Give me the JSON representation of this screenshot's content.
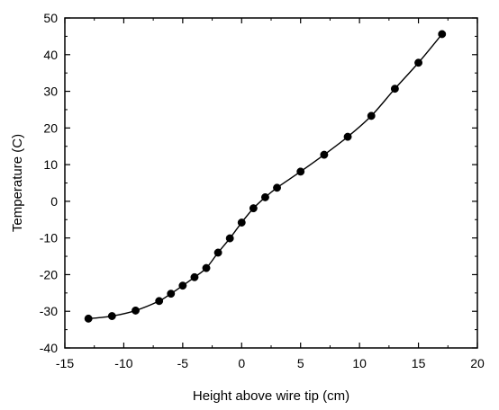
{
  "chart_data": {
    "type": "line",
    "title": "",
    "xlabel": "Height above wire tip  (cm)",
    "ylabel": "Temperature (C)",
    "xlim": [
      -15,
      20
    ],
    "ylim": [
      -40,
      50
    ],
    "x_ticks": [
      -15,
      -10,
      -5,
      0,
      5,
      10,
      15,
      20
    ],
    "y_ticks": [
      -40,
      -30,
      -20,
      -10,
      0,
      10,
      20,
      30,
      40,
      50
    ],
    "x_tick_labels": [
      "-15",
      "-10",
      "-5",
      "0",
      "5",
      "10",
      "15",
      "20"
    ],
    "y_tick_labels": [
      "-40",
      "-30",
      "-20",
      "-10",
      "0",
      "10",
      "20",
      "30",
      "40",
      "50"
    ],
    "grid": false,
    "series": [
      {
        "color": "#000000",
        "marker": "circle",
        "points": [
          {
            "x": -13,
            "y": -32.0
          },
          {
            "x": -11,
            "y": -31.3
          },
          {
            "x": -9,
            "y": -29.8
          },
          {
            "x": -7,
            "y": -27.2
          },
          {
            "x": -6,
            "y": -25.2
          },
          {
            "x": -5,
            "y": -23.0
          },
          {
            "x": -4,
            "y": -20.7
          },
          {
            "x": -3,
            "y": -18.2
          },
          {
            "x": -2,
            "y": -14.0
          },
          {
            "x": -1,
            "y": -10.1
          },
          {
            "x": 0,
            "y": -5.8
          },
          {
            "x": 1,
            "y": -1.9
          },
          {
            "x": 2,
            "y": 1.1
          },
          {
            "x": 3,
            "y": 3.7
          },
          {
            "x": 5,
            "y": 8.1
          },
          {
            "x": 7,
            "y": 12.7
          },
          {
            "x": 9,
            "y": 17.6
          },
          {
            "x": 11,
            "y": 23.3
          },
          {
            "x": 13,
            "y": 30.7
          },
          {
            "x": 15,
            "y": 37.8
          },
          {
            "x": 17,
            "y": 45.6
          }
        ]
      }
    ]
  }
}
